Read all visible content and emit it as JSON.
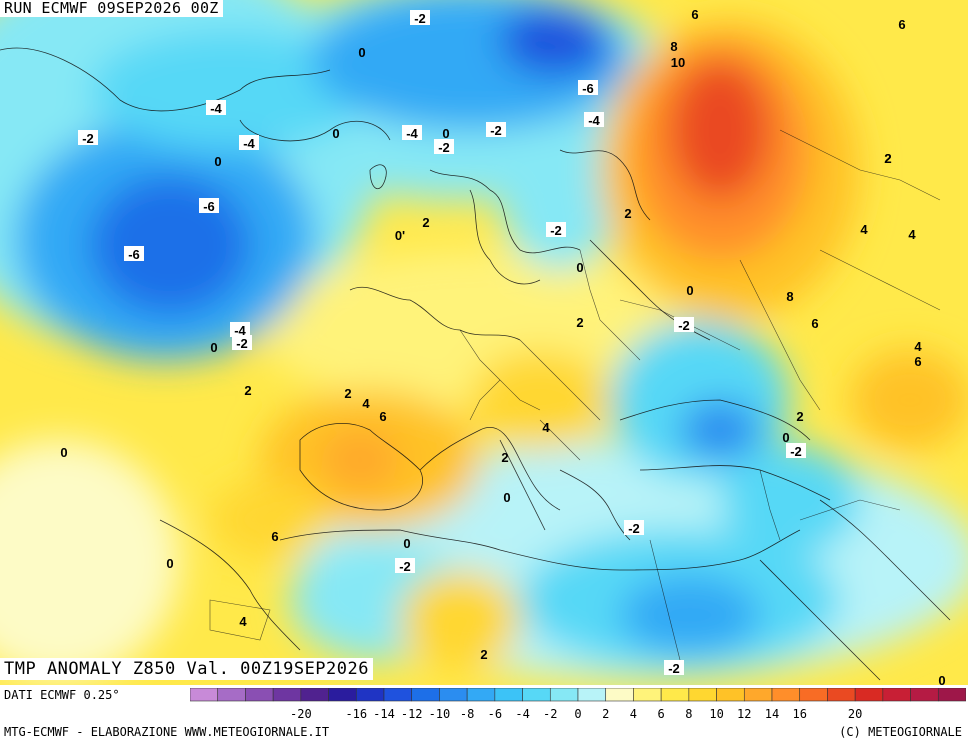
{
  "header": {
    "run": "RUN ECMWF 09SEP2026 00Z"
  },
  "title": "TMP ANOMALY Z850 Val. 00Z19SEP2026",
  "footer": {
    "dati": "DATI ECMWF 0.25°",
    "credits": "MTG-ECMWF - ELABORAZIONE WWW.METEOGIORNALE.IT",
    "copyright": "(C) METEOGIORNALE"
  },
  "legend": {
    "colors": [
      "#c88ad8",
      "#a66cc6",
      "#8a4fb3",
      "#6e36a1",
      "#50228f",
      "#2a1c9e",
      "#1f34c4",
      "#1f52de",
      "#1d6fe8",
      "#2b8df0",
      "#33a9f5",
      "#3cc3f7",
      "#57d8f6",
      "#86e8f5",
      "#b8f3f8",
      "#fdfbc6",
      "#fff37a",
      "#ffe94a",
      "#ffd730",
      "#ffc227",
      "#ffa82b",
      "#ff8e2a",
      "#f86c25",
      "#ea4a22",
      "#d92a23",
      "#c81f35",
      "#b51b44",
      "#9e1749"
    ],
    "ticks": [
      "-20",
      "-18",
      "-16",
      "-14",
      "-12",
      "-10",
      "-8",
      "-6",
      "-4",
      "-2",
      "0",
      "2",
      "4",
      "6",
      "8",
      "10",
      "12",
      "14",
      "16",
      "18",
      "20"
    ],
    "tick_labels_shown": [
      "-20",
      "-16",
      "-14",
      "-12",
      "-10",
      "-8",
      "-6",
      "-4",
      "-2",
      "0",
      "2",
      "4",
      "6",
      "8",
      "10",
      "12",
      "14",
      "16",
      "20"
    ]
  },
  "contour_labels": [
    {
      "text": "-2"
    },
    {
      "text": "6"
    },
    {
      "text": "6"
    },
    {
      "text": "0"
    },
    {
      "text": "8"
    },
    {
      "text": "10"
    },
    {
      "text": "-6"
    },
    {
      "text": "-4"
    },
    {
      "text": "0"
    },
    {
      "text": "-4"
    },
    {
      "text": "-2"
    },
    {
      "text": "-4"
    },
    {
      "text": "0"
    },
    {
      "text": "-2"
    },
    {
      "text": "-4"
    },
    {
      "text": "0"
    },
    {
      "text": "-2"
    },
    {
      "text": "2"
    },
    {
      "text": "2"
    },
    {
      "text": "-6"
    },
    {
      "text": "2"
    },
    {
      "text": "-6"
    },
    {
      "text": "0'"
    },
    {
      "text": "2"
    },
    {
      "text": "-2"
    },
    {
      "text": "4"
    },
    {
      "text": "4"
    },
    {
      "text": "0"
    },
    {
      "text": "0"
    },
    {
      "text": "8"
    },
    {
      "text": "-4"
    },
    {
      "text": "-2"
    },
    {
      "text": "0"
    },
    {
      "text": "2"
    },
    {
      "text": "-2"
    },
    {
      "text": "6"
    },
    {
      "text": "4"
    },
    {
      "text": "6"
    },
    {
      "text": "2"
    },
    {
      "text": "2"
    },
    {
      "text": "4"
    },
    {
      "text": "6"
    },
    {
      "text": "2"
    },
    {
      "text": "0"
    },
    {
      "text": "4"
    },
    {
      "text": "0"
    },
    {
      "text": "-2"
    },
    {
      "text": "2"
    },
    {
      "text": "0"
    },
    {
      "text": "-2"
    },
    {
      "text": "6"
    },
    {
      "text": "0"
    },
    {
      "text": "0"
    },
    {
      "text": "-2"
    },
    {
      "text": "4"
    },
    {
      "text": "2"
    },
    {
      "text": "-2"
    },
    {
      "text": "0"
    }
  ]
}
